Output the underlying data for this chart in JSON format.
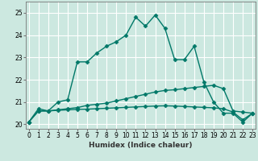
{
  "xlabel": "Humidex (Indice chaleur)",
  "bg_color": "#cce8e0",
  "grid_color": "#ffffff",
  "line_color": "#007868",
  "x": [
    0,
    1,
    2,
    3,
    4,
    5,
    6,
    7,
    8,
    9,
    10,
    11,
    12,
    13,
    14,
    15,
    16,
    17,
    18,
    19,
    20,
    21,
    22,
    23
  ],
  "line1": [
    20.1,
    20.7,
    20.6,
    21.0,
    21.1,
    22.8,
    22.8,
    23.2,
    23.5,
    23.7,
    24.0,
    24.8,
    24.4,
    24.9,
    24.3,
    22.9,
    22.9,
    23.5,
    21.9,
    21.0,
    20.5,
    20.5,
    20.1,
    20.5
  ],
  "line2": [
    20.1,
    20.6,
    20.6,
    20.65,
    20.7,
    20.75,
    20.85,
    20.9,
    20.95,
    21.05,
    21.15,
    21.25,
    21.35,
    21.45,
    21.52,
    21.55,
    21.6,
    21.65,
    21.7,
    21.75,
    21.6,
    20.6,
    20.55,
    20.5
  ],
  "line3": [
    20.1,
    20.6,
    20.6,
    20.63,
    20.65,
    20.67,
    20.68,
    20.7,
    20.72,
    20.74,
    20.76,
    20.78,
    20.8,
    20.82,
    20.83,
    20.82,
    20.8,
    20.78,
    20.76,
    20.74,
    20.7,
    20.55,
    20.2,
    20.5
  ],
  "ylim": [
    19.8,
    25.5
  ],
  "yticks": [
    20,
    21,
    22,
    23,
    24,
    25
  ],
  "xticks": [
    0,
    1,
    2,
    3,
    4,
    5,
    6,
    7,
    8,
    9,
    10,
    11,
    12,
    13,
    14,
    15,
    16,
    17,
    18,
    19,
    20,
    21,
    22,
    23
  ],
  "marker": "D",
  "markersize": 2.5,
  "linewidth": 1.0,
  "tick_fontsize": 5.5,
  "xlabel_fontsize": 6.5
}
